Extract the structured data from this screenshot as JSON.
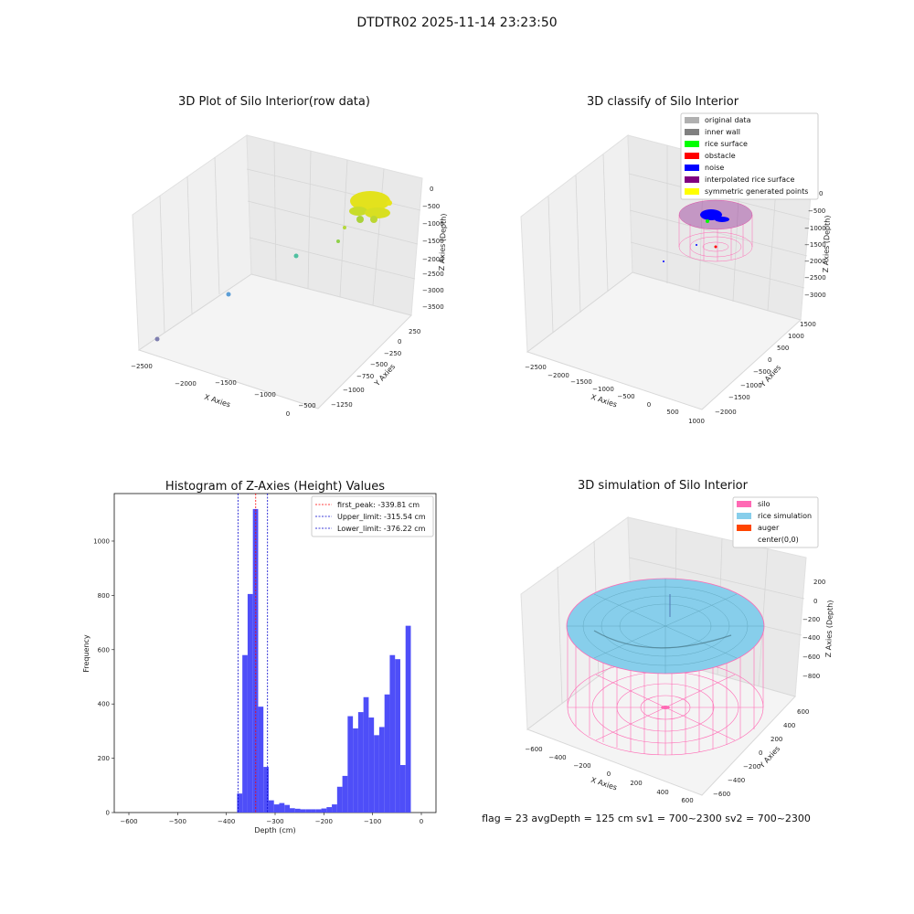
{
  "suptitle": "DTDTR02 2025-11-14 23:23:50",
  "colors": {
    "hist_bar": "#4e4ef8",
    "peak_line": "#ff0000",
    "limit_line": "#0000cc",
    "silo_wire": "#ff69b4",
    "rice_surface": "#87ceeb",
    "auger": "#ff4500",
    "original_data": "#b0b0b0",
    "inner_wall": "#808080",
    "rice_surface_class": "#00ff00",
    "obstacle": "#ff0000",
    "noise": "#0000ff",
    "interpolated": "#800080",
    "symmetric": "#ffff00"
  },
  "panels": {
    "raw": {
      "title": "3D Plot of Silo Interior(row data)",
      "xlabel": "X Axies",
      "ylabel": "Y Axies",
      "zlabel": "Z Axies (Depth)",
      "x_ticks": [
        "−2500",
        "−2000",
        "−1500",
        "−1000",
        "−500",
        "0"
      ],
      "y_ticks": [
        "250",
        "0",
        "−250",
        "−500",
        "−750",
        "−1000",
        "−1250"
      ],
      "z_ticks": [
        "0",
        "−500",
        "−1000",
        "−1500",
        "−2000",
        "−2500",
        "−3000",
        "−3500"
      ]
    },
    "classify": {
      "title": "3D classify of Silo Interior",
      "xlabel": "X Axies",
      "ylabel": "Y Axies",
      "zlabel": "Z Axies (Depth)",
      "x_ticks": [
        "−2500",
        "−2000",
        "−1500",
        "−1000",
        "−500",
        "0",
        "500",
        "1000"
      ],
      "y_ticks": [
        "1500",
        "1000",
        "500",
        "0",
        "−500",
        "−1000",
        "−1500",
        "−2000"
      ],
      "z_ticks": [
        "0",
        "−500",
        "−1000",
        "−1500",
        "−2000",
        "−2500",
        "−3000"
      ],
      "legend": [
        {
          "label": "original data",
          "color": "#b0b0b0"
        },
        {
          "label": "inner wall",
          "color": "#808080"
        },
        {
          "label": "rice surface",
          "color": "#00ff00"
        },
        {
          "label": "obstacle",
          "color": "#ff0000"
        },
        {
          "label": "noise",
          "color": "#0000ff"
        },
        {
          "label": "interpolated rice surface",
          "color": "#800080"
        },
        {
          "label": "symmetric generated points",
          "color": "#ffff00"
        }
      ]
    },
    "simulation": {
      "title": "3D simulation of Silo Interior",
      "xlabel": "X Axies",
      "ylabel": "Y Axies",
      "zlabel": "Z Axies (Depth)",
      "x_ticks": [
        "−600",
        "−400",
        "−200",
        "0",
        "200",
        "400",
        "600"
      ],
      "y_ticks": [
        "600",
        "400",
        "200",
        "0",
        "−200",
        "−400",
        "−600"
      ],
      "z_ticks": [
        "200",
        "0",
        "−200",
        "−400",
        "−600",
        "−800"
      ],
      "legend": [
        {
          "label": "silo",
          "color": "#ff69b4"
        },
        {
          "label": "rice simulation",
          "color": "#87ceeb"
        },
        {
          "label": "auger",
          "color": "#ff4500"
        },
        {
          "label": "center(0,0)",
          "color": ""
        }
      ]
    }
  },
  "annotation": "flag = 23  avgDepth = 125 cm  sv1 = 700~2300  sv2 = 700~2300",
  "chart_data": {
    "type": "bar",
    "title": "Histogram of Z-Axies (Height) Values",
    "xlabel": "Depth (cm)",
    "ylabel": "Frequency",
    "xlim": [
      -630,
      30
    ],
    "ylim": [
      0,
      1175
    ],
    "x_ticks": [
      -600,
      -500,
      -400,
      -300,
      -200,
      -100,
      0
    ],
    "y_ticks": [
      0,
      200,
      400,
      600,
      800,
      1000
    ],
    "bin_width": 10.8,
    "bins": [
      {
        "x0": -378,
        "count": 70
      },
      {
        "x0": -367.2,
        "count": 580
      },
      {
        "x0": -356.4,
        "count": 805
      },
      {
        "x0": -345.6,
        "count": 1118
      },
      {
        "x0": -334.8,
        "count": 390
      },
      {
        "x0": -324,
        "count": 168
      },
      {
        "x0": -313.2,
        "count": 45
      },
      {
        "x0": -302.4,
        "count": 30
      },
      {
        "x0": -291.6,
        "count": 35
      },
      {
        "x0": -280.8,
        "count": 28
      },
      {
        "x0": -270,
        "count": 16
      },
      {
        "x0": -259.2,
        "count": 14
      },
      {
        "x0": -248.4,
        "count": 12
      },
      {
        "x0": -237.6,
        "count": 12
      },
      {
        "x0": -226.8,
        "count": 12
      },
      {
        "x0": -216,
        "count": 12
      },
      {
        "x0": -205.2,
        "count": 15
      },
      {
        "x0": -194.4,
        "count": 20
      },
      {
        "x0": -183.6,
        "count": 30
      },
      {
        "x0": -172.8,
        "count": 95
      },
      {
        "x0": -162,
        "count": 135
      },
      {
        "x0": -151.2,
        "count": 355
      },
      {
        "x0": -140.4,
        "count": 310
      },
      {
        "x0": -129.6,
        "count": 370
      },
      {
        "x0": -118.8,
        "count": 425
      },
      {
        "x0": -108,
        "count": 350
      },
      {
        "x0": -97.2,
        "count": 285
      },
      {
        "x0": -86.4,
        "count": 315
      },
      {
        "x0": -75.6,
        "count": 435
      },
      {
        "x0": -64.8,
        "count": 580
      },
      {
        "x0": -54,
        "count": 565
      },
      {
        "x0": -43.2,
        "count": 175
      },
      {
        "x0": -32.4,
        "count": 688
      }
    ],
    "lines": [
      {
        "name": "first_peak: -339.81 cm",
        "x": -339.81,
        "color": "#ff0000"
      },
      {
        "name": "Upper_limit: -315.54 cm",
        "x": -315.54,
        "color": "#0000cc"
      },
      {
        "name": "Lower_limit: -376.22 cm",
        "x": -376.22,
        "color": "#0000cc"
      }
    ],
    "legend_position": "upper right"
  }
}
